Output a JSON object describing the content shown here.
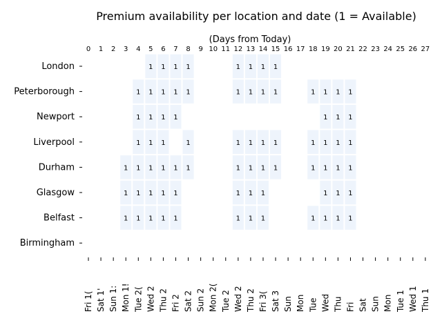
{
  "chart_data": {
    "type": "heatmap",
    "title": "Premium availability per location and date (1 = Available)",
    "x_label": "(Days from Today)",
    "xticks": [
      0,
      1,
      2,
      3,
      4,
      5,
      6,
      7,
      8,
      9,
      10,
      11,
      12,
      13,
      14,
      15,
      16,
      17,
      18,
      19,
      20,
      21,
      22,
      23,
      24,
      25,
      26,
      27
    ],
    "categories": [
      "Fri 1(",
      "Sat 1'",
      "Sun 1:",
      "Mon 1!",
      "Tue 2(",
      "Wed 2",
      "Thu 2",
      "Fri 2",
      "Sat 2",
      "Sun 2",
      "Mon 2(",
      "Tue 2",
      "Wed 2",
      "Thu 2",
      "Fri 3(",
      "Sat 3",
      "Sun",
      "Mon",
      "Tue",
      "Wed",
      "Thu",
      "Fri",
      "Sat",
      "Sun",
      "Mon",
      "Tue 1",
      "Wed 1",
      "Thu 1"
    ],
    "rows": [
      "London",
      "Peterborough",
      "Newport",
      "Liverpool",
      "Durham",
      "Glasgow",
      "Belfast",
      "Birmingham"
    ],
    "color": "#eef4fc",
    "z": [
      [
        null,
        null,
        null,
        null,
        null,
        1,
        1,
        1,
        1,
        null,
        null,
        null,
        1,
        1,
        1,
        1,
        null,
        null,
        null,
        null,
        null,
        null,
        null,
        null,
        null,
        null,
        null,
        null
      ],
      [
        null,
        null,
        null,
        null,
        1,
        1,
        1,
        1,
        1,
        null,
        null,
        null,
        1,
        1,
        1,
        1,
        null,
        null,
        1,
        1,
        1,
        1,
        null,
        null,
        null,
        null,
        null,
        null
      ],
      [
        null,
        null,
        null,
        null,
        1,
        1,
        1,
        1,
        null,
        null,
        null,
        null,
        null,
        null,
        null,
        null,
        null,
        null,
        null,
        1,
        1,
        1,
        null,
        null,
        null,
        null,
        null,
        null
      ],
      [
        null,
        null,
        null,
        null,
        1,
        1,
        1,
        null,
        1,
        null,
        null,
        null,
        1,
        1,
        1,
        1,
        null,
        null,
        1,
        1,
        1,
        1,
        null,
        null,
        null,
        null,
        null,
        null
      ],
      [
        null,
        null,
        null,
        1,
        1,
        1,
        1,
        1,
        1,
        null,
        null,
        null,
        1,
        1,
        1,
        1,
        null,
        null,
        1,
        1,
        1,
        1,
        null,
        null,
        null,
        null,
        null,
        null
      ],
      [
        null,
        null,
        null,
        1,
        1,
        1,
        1,
        1,
        null,
        null,
        null,
        null,
        1,
        1,
        1,
        null,
        null,
        null,
        null,
        1,
        1,
        1,
        null,
        null,
        null,
        null,
        null,
        null
      ],
      [
        null,
        null,
        null,
        1,
        1,
        1,
        1,
        1,
        null,
        null,
        null,
        null,
        1,
        1,
        1,
        null,
        null,
        null,
        1,
        1,
        1,
        1,
        null,
        null,
        null,
        null,
        null,
        null
      ],
      [
        null,
        null,
        null,
        null,
        null,
        null,
        null,
        null,
        null,
        null,
        null,
        null,
        null,
        null,
        null,
        null,
        null,
        null,
        null,
        null,
        null,
        null,
        null,
        null,
        null,
        null,
        null,
        null
      ]
    ]
  }
}
